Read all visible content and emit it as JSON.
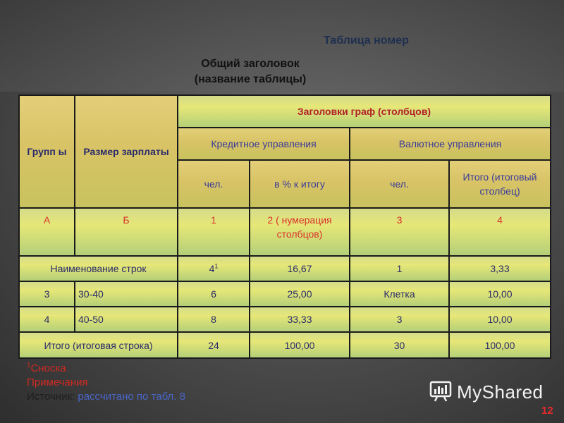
{
  "table_number": "Таблица номер",
  "title_line1": "Общий заголовок",
  "title_line2": "(название таблицы)",
  "header": {
    "groups": "Групп ы",
    "salary": "Размер зарплаты",
    "columns_header": "Заголовки граф (столбцов)",
    "credit": "Кредитное управления",
    "currency": "Валютное управления",
    "people1": "чел.",
    "percent": "в % к итогу",
    "people2": "чел.",
    "total_col": "Итого (итоговый столбец)"
  },
  "numbering": {
    "a": "А",
    "b": "Б",
    "n1": "1",
    "n2": "2 ( нумерация столбцов)",
    "n3": "3",
    "n4": "4"
  },
  "rows": [
    {
      "label": "Наименование строк",
      "c1": "4",
      "c1_sup": "1",
      "c2": "16,67",
      "c3": "1",
      "c4": "3,33"
    },
    {
      "group": "3",
      "salary": "30-40",
      "c1": "6",
      "c2": "25,00",
      "c3": "Клетка",
      "c4": "10,00"
    },
    {
      "group": "4",
      "salary": "40-50",
      "c1": "8",
      "c2": "33,33",
      "c3": "3",
      "c4": "10,00"
    },
    {
      "label": "Итого (итоговая строка)",
      "c1": "24",
      "c2": "100,00",
      "c3": "30",
      "c4": "100,00"
    }
  ],
  "notes": {
    "footnote_sup": "1",
    "footnote": "Сноска",
    "remarks": "Примечания",
    "source_label": "Источник:",
    "source_value": " рассчитано по табл. 8"
  },
  "logo_text": "MyShared",
  "page_number": "12",
  "colors": {
    "accent_red": "#d9312b",
    "text_blue": "#3b3b9a",
    "header_gold": "#d8c366",
    "cell_lime": "#e6e777"
  }
}
